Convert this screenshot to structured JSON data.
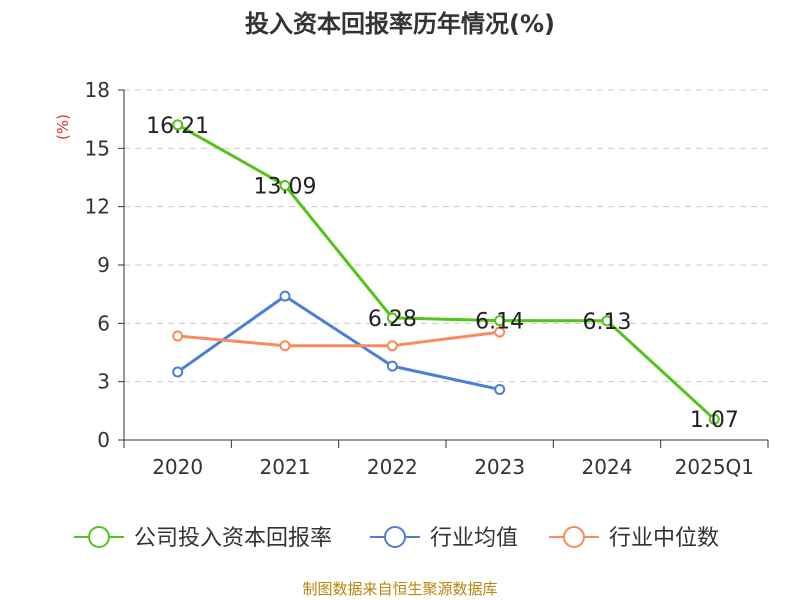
{
  "title": "投入资本回报率历年情况(%)",
  "source": "制图数据来自恒生聚源数据库",
  "chart_data": {
    "type": "line",
    "title": "投入资本回报率历年情况(%)",
    "ylabel": "(%)",
    "xlabel": "",
    "categories": [
      "2020",
      "2021",
      "2022",
      "2023",
      "2024",
      "2025Q1"
    ],
    "ylim": [
      0,
      18
    ],
    "yticks": [
      0,
      3,
      6,
      9,
      12,
      15,
      18
    ],
    "grid": true,
    "legend_position": "bottom",
    "series": [
      {
        "name": "公司投入资本回报率",
        "color": "#52c41a",
        "values": [
          16.21,
          13.09,
          6.28,
          6.14,
          6.13,
          1.07
        ],
        "labels": [
          "16.21",
          "13.09",
          "6.28",
          "6.14",
          "6.13",
          "1.07"
        ]
      },
      {
        "name": "行业均值",
        "color": "#4a7fd9",
        "values": [
          3.5,
          7.4,
          3.8,
          2.6,
          null,
          null
        ]
      },
      {
        "name": "行业中位数",
        "color": "#f58c5a",
        "values": [
          5.35,
          4.85,
          4.85,
          5.55,
          null,
          null
        ]
      }
    ]
  }
}
